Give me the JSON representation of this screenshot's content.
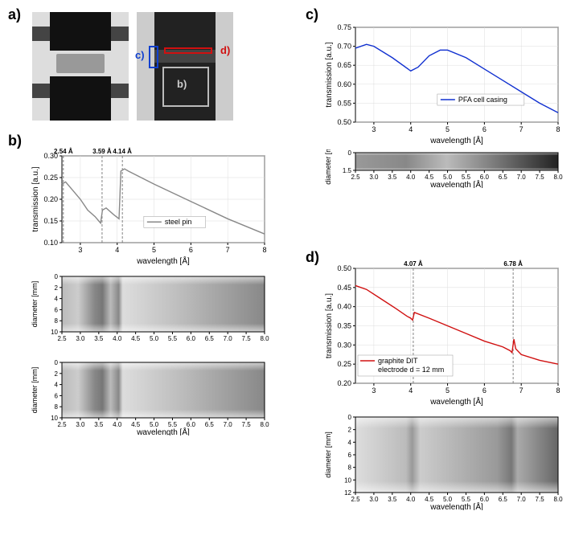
{
  "labels": {
    "a": "a)",
    "b": "b)",
    "c": "c)",
    "d": "d)"
  },
  "panel_a": {
    "annot_c_label": "c)",
    "annot_c_color": "#1040d0",
    "annot_d_label": "d)",
    "annot_d_color": "#d01010",
    "annot_b_label": "b)",
    "annot_b_color": "#d0d0d0"
  },
  "panel_b": {
    "type": "line+heatmap",
    "peaks": [
      "2.54 Å",
      "3.59 Å",
      "4.14 Å"
    ],
    "peak_x": [
      2.54,
      3.59,
      4.14
    ],
    "xlim": [
      2.5,
      8.0
    ],
    "ylim": [
      0.1,
      0.3
    ],
    "yticks": [
      0.1,
      0.15,
      0.2,
      0.25,
      0.3
    ],
    "xticks": [
      3,
      4,
      5,
      6,
      7,
      8
    ],
    "xlabel": "wavelength [Å]",
    "ylabel": "transmission [a.u.]",
    "legend": "steel pin",
    "line_color": "#888888",
    "data_x": [
      2.5,
      2.6,
      2.8,
      3.0,
      3.2,
      3.4,
      3.5,
      3.55,
      3.6,
      3.7,
      3.9,
      4.05,
      4.1,
      4.2,
      4.3,
      5.0,
      6.0,
      7.0,
      8.0
    ],
    "data_y": [
      0.235,
      0.24,
      0.22,
      0.2,
      0.175,
      0.16,
      0.15,
      0.145,
      0.175,
      0.18,
      0.165,
      0.155,
      0.265,
      0.27,
      0.265,
      0.235,
      0.195,
      0.155,
      0.12
    ],
    "heatmap1_ylabel": "diameter [mm]",
    "heatmap1_ylim": [
      0,
      10
    ],
    "heatmap1_yticks": [
      0,
      2,
      4,
      6,
      8,
      10
    ],
    "heatmap2_ylabel": "diameter [mm]",
    "heatmap2_ylim": [
      0,
      10
    ],
    "heatmap2_yticks": [
      0,
      2,
      4,
      6,
      8,
      10
    ],
    "heatmap_xticks": [
      2.5,
      3.0,
      3.5,
      4.0,
      4.5,
      5.0,
      5.5,
      6.0,
      6.5,
      7.0,
      7.5,
      8.0
    ]
  },
  "panel_c": {
    "type": "line+heatmap",
    "xlim": [
      2.5,
      8.0
    ],
    "ylim": [
      0.5,
      0.75
    ],
    "yticks": [
      0.5,
      0.55,
      0.6,
      0.65,
      0.7,
      0.75
    ],
    "xticks": [
      3,
      4,
      5,
      6,
      7,
      8
    ],
    "xlabel": "wavelength [Å]",
    "ylabel": "transmission [a.u.]",
    "legend": "PFA cell casing",
    "line_color": "#1030d0",
    "data_x": [
      2.5,
      2.8,
      3.0,
      3.5,
      4.0,
      4.2,
      4.5,
      4.8,
      5.0,
      5.5,
      6.0,
      6.5,
      7.0,
      7.5,
      8.0
    ],
    "data_y": [
      0.695,
      0.705,
      0.7,
      0.67,
      0.635,
      0.645,
      0.675,
      0.69,
      0.69,
      0.67,
      0.64,
      0.61,
      0.58,
      0.55,
      0.525
    ],
    "heatmap_ylabel": "diameter [mm]",
    "heatmap_ylim": [
      0,
      1.5
    ],
    "heatmap_yticks": [
      0,
      1.5
    ],
    "heatmap_xticks": [
      2.5,
      3.0,
      3.5,
      4.0,
      4.5,
      5.0,
      5.5,
      6.0,
      6.5,
      7.0,
      7.5,
      8.0
    ]
  },
  "panel_d": {
    "type": "line+heatmap",
    "peaks": [
      "4.07 Å",
      "6.78 Å"
    ],
    "peak_x": [
      4.07,
      6.78
    ],
    "xlim": [
      2.5,
      8.0
    ],
    "ylim": [
      0.2,
      0.5
    ],
    "yticks": [
      0.2,
      0.25,
      0.3,
      0.35,
      0.4,
      0.45,
      0.5
    ],
    "xticks": [
      3,
      4,
      5,
      6,
      7,
      8
    ],
    "xlabel": "wavelength [Å]",
    "ylabel": "transmission [a.u.]",
    "legend_line1": "graphite DIT",
    "legend_line2": "electrode d = 12 mm",
    "line_color": "#d01010",
    "data_x": [
      2.5,
      2.8,
      3.2,
      3.6,
      3.9,
      4.0,
      4.05,
      4.1,
      4.5,
      5.0,
      5.5,
      6.0,
      6.5,
      6.7,
      6.75,
      6.8,
      6.85,
      7.0,
      7.5,
      8.0
    ],
    "data_y": [
      0.455,
      0.445,
      0.42,
      0.395,
      0.375,
      0.37,
      0.365,
      0.385,
      0.37,
      0.35,
      0.33,
      0.31,
      0.295,
      0.285,
      0.28,
      0.315,
      0.29,
      0.275,
      0.26,
      0.25
    ],
    "heatmap_ylabel": "diameter [mm]",
    "heatmap_ylim": [
      0,
      12
    ],
    "heatmap_yticks": [
      0,
      2,
      4,
      6,
      8,
      10,
      12
    ],
    "heatmap_xticks": [
      2.5,
      3.0,
      3.5,
      4.0,
      4.5,
      5.0,
      5.5,
      6.0,
      6.5,
      7.0,
      7.5,
      8.0
    ]
  }
}
